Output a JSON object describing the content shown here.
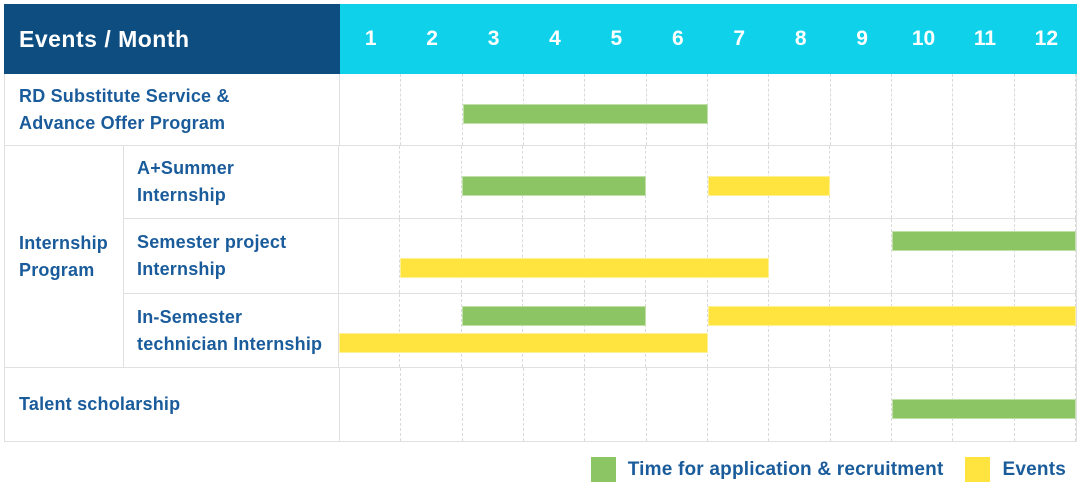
{
  "colors": {
    "navy": "#0d4d80",
    "cyan": "#0fd2ea",
    "green": "#8cc563",
    "yellow": "#ffe33e",
    "label_blue": "#1a5c9b",
    "grid": "#e0e0e0"
  },
  "table": {
    "corner_label": "Events / Month",
    "months": [
      "1",
      "2",
      "3",
      "4",
      "5",
      "6",
      "7",
      "8",
      "9",
      "10",
      "11",
      "12"
    ],
    "row_labels": {
      "rd_line1": "RD Substitute Service &",
      "rd_line2": "Advance Offer Program",
      "group_line1": "Internship",
      "group_line2": "Program",
      "summer_line1": "A+Summer",
      "summer_line2": "Internship",
      "semester_line1": "Semester project",
      "semester_line2": "Internship",
      "technician_line1": "In-Semester",
      "technician_line2": "technician Internship",
      "talent": "Talent scholarship"
    }
  },
  "legend": {
    "items": [
      {
        "label": "Time for application & recruitment",
        "color": "#8cc563",
        "series": "application"
      },
      {
        "label": "Events",
        "color": "#ffe33e",
        "series": "events"
      }
    ]
  },
  "chart_data": {
    "type": "gantt",
    "x_unit": "month",
    "x_range": [
      1,
      12
    ],
    "series": [
      {
        "name": "application",
        "legend_label": "Time for application & recruitment",
        "color": "#8cc563"
      },
      {
        "name": "events",
        "legend_label": "Events",
        "color": "#ffe33e"
      }
    ],
    "rows": [
      {
        "label": "RD Substitute Service & Advance Offer Program",
        "group": null,
        "bars": [
          {
            "series": "application",
            "start_month": 3,
            "end_month": 6,
            "lane": "single"
          }
        ]
      },
      {
        "label": "A+Summer Internship",
        "group": "Internship Program",
        "bars": [
          {
            "series": "application",
            "start_month": 3,
            "end_month": 5,
            "lane": "single"
          },
          {
            "series": "events",
            "start_month": 7,
            "end_month": 8,
            "lane": "single"
          }
        ]
      },
      {
        "label": "Semester project Internship",
        "group": "Internship Program",
        "bars": [
          {
            "series": "application",
            "start_month": 10,
            "end_month": 12,
            "lane": "upper"
          },
          {
            "series": "events",
            "start_month": 2,
            "end_month": 7,
            "lane": "lower"
          }
        ]
      },
      {
        "label": "In-Semester technician Internship",
        "group": "Internship Program",
        "bars": [
          {
            "series": "application",
            "start_month": 3,
            "end_month": 5,
            "lane": "upper"
          },
          {
            "series": "events",
            "start_month": 7,
            "end_month": 12,
            "lane": "upper"
          },
          {
            "series": "events",
            "start_month": 1,
            "end_month": 6,
            "lane": "lower"
          }
        ]
      },
      {
        "label": "Talent scholarship",
        "group": null,
        "bars": [
          {
            "series": "application",
            "start_month": 10,
            "end_month": 12,
            "lane": "single"
          }
        ]
      }
    ]
  }
}
